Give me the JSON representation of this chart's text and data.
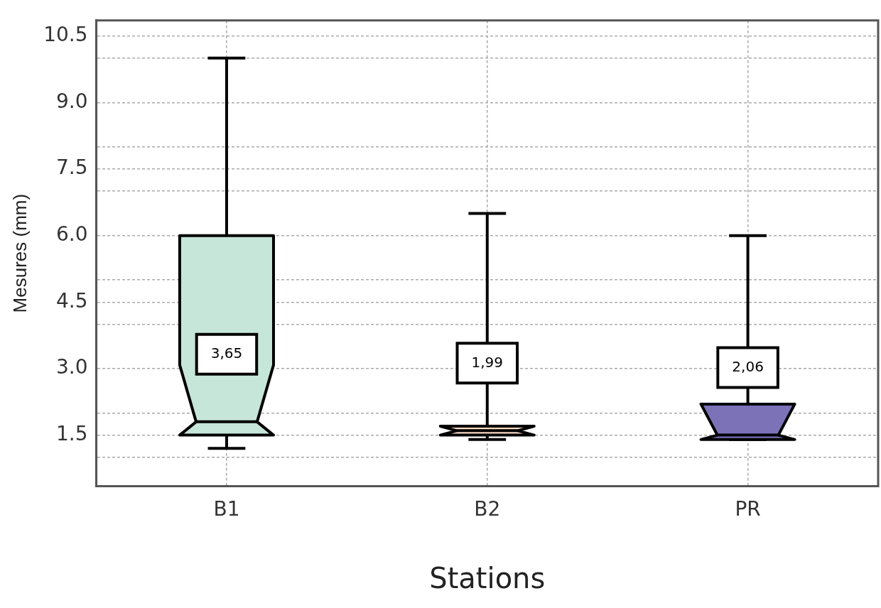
{
  "chart_data": {
    "type": "box",
    "xlabel": "Stations",
    "ylabel": "Mesures (mm)",
    "categories": [
      "B1",
      "B2",
      "PR"
    ],
    "colors": [
      "#c6e6d9",
      "#f7d9c4",
      "#7b72b8"
    ],
    "boxes": [
      {
        "low": 1.2,
        "q1": 1.5,
        "median": 1.8,
        "q3": 6.0,
        "high": 10.0
      },
      {
        "low": 1.4,
        "q1": 1.5,
        "median": 1.6,
        "q3": 1.7,
        "high": 6.5
      },
      {
        "low": 1.4,
        "q1": 1.4,
        "median": 1.5,
        "q3": 2.2,
        "high": 6.0
      }
    ],
    "ylim": [
      0.35,
      10.85
    ],
    "yticks": [
      {
        "value": 1,
        "label": null
      },
      1.5,
      {
        "value": 2,
        "label": null
      },
      {
        "value": 3,
        "label": "3.0"
      },
      {
        "value": 4,
        "label": null
      },
      4.5,
      {
        "value": 5,
        "label": null
      },
      {
        "value": 6,
        "label": "6.0"
      },
      {
        "value": 7,
        "label": null
      },
      7.5,
      {
        "value": 8,
        "label": null
      },
      {
        "value": 9,
        "label": "9.0"
      },
      {
        "value": 10,
        "label": null
      },
      10.5
    ],
    "grid": true,
    "annotations": [
      "3,65",
      "1,99",
      "2,06"
    ]
  }
}
